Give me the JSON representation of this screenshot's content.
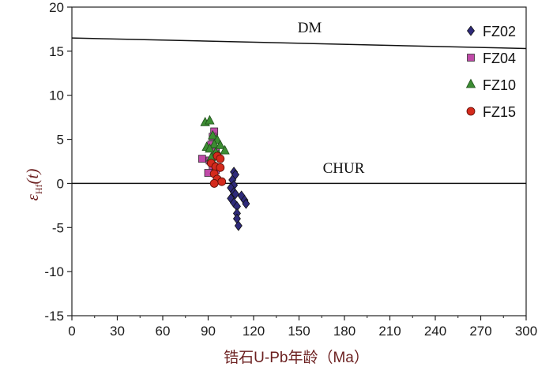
{
  "chart_data": {
    "type": "scatter",
    "xlabel": "锆石U-Pb年龄（Ma）",
    "ylabel": {
      "main": "ε",
      "sub": "Hf",
      "tail": "(t)"
    },
    "xlim": [
      0,
      300
    ],
    "ylim": [
      -15,
      20
    ],
    "xticks": [
      "0",
      "30",
      "60",
      "90",
      "120",
      "150",
      "180",
      "210",
      "240",
      "270",
      "300"
    ],
    "yticks": [
      "20",
      "15",
      "10",
      "5",
      "0",
      "-5",
      "-10",
      "-15"
    ],
    "grid": false,
    "legend_position": "top-right",
    "reference_lines": [
      {
        "name": "DM",
        "x": [
          0,
          300
        ],
        "y": [
          16.5,
          15.3
        ]
      },
      {
        "name": "CHUR",
        "x": [
          0,
          300
        ],
        "y": [
          0,
          0
        ]
      }
    ],
    "series": [
      {
        "name": "FZ02",
        "marker": "diamond",
        "color": "#2e2a7a",
        "points": [
          [
            107,
            1.3
          ],
          [
            108,
            1.0
          ],
          [
            106,
            0.4
          ],
          [
            107,
            -0.2
          ],
          [
            105,
            -0.5
          ],
          [
            107,
            -1.0
          ],
          [
            108,
            -1.2
          ],
          [
            105,
            -1.7
          ],
          [
            107,
            -2.2
          ],
          [
            109,
            -2.6
          ],
          [
            112,
            -1.4
          ],
          [
            114,
            -1.9
          ],
          [
            115,
            -2.3
          ],
          [
            109,
            -3.4
          ],
          [
            109,
            -4.0
          ],
          [
            110,
            -4.8
          ]
        ]
      },
      {
        "name": "FZ04",
        "marker": "square",
        "color": "#c04aa8",
        "points": [
          [
            94,
            5.9
          ],
          [
            93,
            5.3
          ],
          [
            92,
            4.4
          ],
          [
            95,
            3.6
          ],
          [
            86,
            2.8
          ],
          [
            91,
            2.6
          ],
          [
            93,
            2.0
          ],
          [
            95,
            1.5
          ],
          [
            90,
            1.2
          ]
        ]
      },
      {
        "name": "FZ10",
        "marker": "triangle",
        "color": "#3c8d33",
        "points": [
          [
            88,
            6.9
          ],
          [
            91,
            7.1
          ],
          [
            93,
            5.4
          ],
          [
            96,
            4.9
          ],
          [
            94,
            4.4
          ],
          [
            98,
            4.3
          ],
          [
            89,
            4.1
          ],
          [
            91,
            3.9
          ],
          [
            95,
            3.5
          ],
          [
            101,
            3.7
          ],
          [
            97,
            3.2
          ],
          [
            92,
            2.9
          ]
        ]
      },
      {
        "name": "FZ15",
        "marker": "circle",
        "color": "#d42a1c",
        "points": [
          [
            96,
            3.1
          ],
          [
            98,
            2.8
          ],
          [
            92,
            2.3
          ],
          [
            95,
            1.9
          ],
          [
            98,
            1.8
          ],
          [
            94,
            1.1
          ],
          [
            96,
            0.5
          ],
          [
            99,
            0.2
          ],
          [
            94,
            0.0
          ]
        ]
      }
    ]
  }
}
